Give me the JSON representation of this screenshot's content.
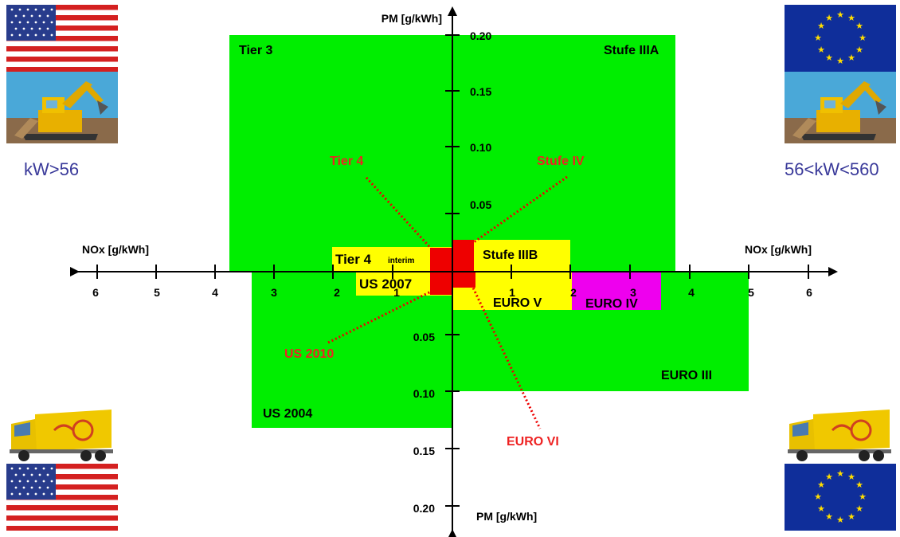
{
  "axes": {
    "pm_top": "PM [g/kWh]",
    "pm_bottom": "PM [g/kWh]",
    "nox_left": "NOx [g/kWh]",
    "nox_right": "NOx [g/kWh]",
    "ticks_pm_top": [
      "0.20",
      "0.15",
      "0.10",
      "0.05"
    ],
    "ticks_pm_bottom": [
      "0.05",
      "0.10",
      "0.15",
      "0.20"
    ],
    "ticks_nox_left": [
      "6",
      "5",
      "4",
      "3",
      "2",
      "1"
    ],
    "ticks_nox_right": [
      "1",
      "2",
      "3",
      "4",
      "5",
      "6"
    ]
  },
  "regions": {
    "tier3": "Tier 3",
    "stufe3a": "Stufe IIIA",
    "tier4_interim": "Tier 4",
    "tier4_interim_small": "interim",
    "us2007": "US 2007",
    "stufe3b": "Stufe IIIB",
    "euro5": "EURO V",
    "euro4": "EURO IV",
    "euro3": "EURO III",
    "us2004": "US 2004"
  },
  "callouts": {
    "tier4": "Tier 4",
    "stufe4": "Stufe IV",
    "us2010": "US 2010",
    "euro6": "EURO VI"
  },
  "captions": {
    "left": "kW>56",
    "right": "56<kW<560"
  },
  "colors": {
    "green": "#00ee00",
    "yellow": "#ffff00",
    "magenta": "#ee00ee",
    "red": "#ee0000",
    "callout_text": "#ee2222",
    "caption": "#3a3a9a"
  },
  "icons": [
    "us-flag-icon",
    "eu-flag-icon",
    "excavator-icon",
    "truck-icon"
  ]
}
